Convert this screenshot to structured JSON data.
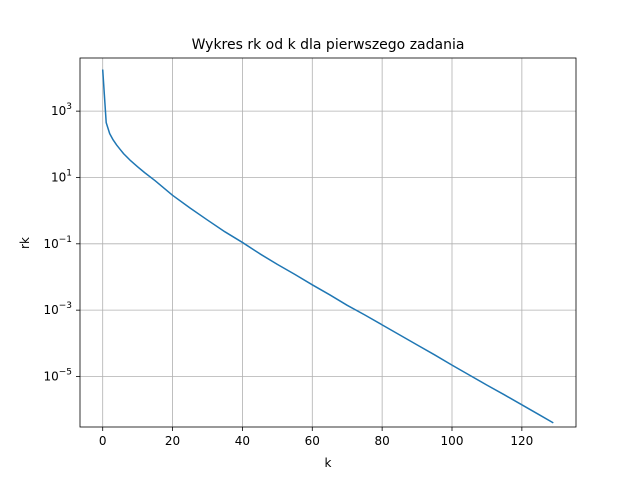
{
  "chart_data": {
    "type": "line",
    "title": "Wykres rk od k dla pierwszego zadania",
    "xlabel": "k",
    "ylabel": "rk",
    "yscale": "log",
    "grid": true,
    "xlim": [
      -6.5,
      135.5
    ],
    "ylim": [
      3e-07,
      40000.0
    ],
    "xticks": [
      0,
      20,
      40,
      60,
      80,
      100,
      120
    ],
    "xtick_labels": [
      "0",
      "20",
      "40",
      "60",
      "80",
      "100",
      "120"
    ],
    "yticks": [
      1e-05,
      0.001,
      0.1,
      10.0,
      1000.0
    ],
    "ytick_labels": [
      {
        "base": "10",
        "exp": "−5"
      },
      {
        "base": "10",
        "exp": "−3"
      },
      {
        "base": "10",
        "exp": "−1"
      },
      {
        "base": "10",
        "exp": "1"
      },
      {
        "base": "10",
        "exp": "3"
      }
    ],
    "series": [
      {
        "color": "#1f77b4",
        "x": [
          0,
          1,
          2,
          3,
          4,
          5,
          6,
          8,
          10,
          12,
          15,
          20,
          25,
          30,
          35,
          40,
          45,
          50,
          55,
          60,
          65,
          70,
          75,
          80,
          85,
          90,
          95,
          100,
          105,
          110,
          115,
          120,
          125,
          129
        ],
        "y": [
          18000,
          450,
          210,
          135,
          95,
          70,
          52,
          32,
          21,
          14,
          8,
          2.9,
          1.2,
          0.52,
          0.23,
          0.11,
          0.05,
          0.024,
          0.012,
          0.0058,
          0.0029,
          0.0014,
          0.00072,
          0.00036,
          0.00018,
          9e-05,
          4.5e-05,
          2.2e-05,
          1.1e-05,
          5.5e-06,
          2.8e-06,
          1.4e-06,
          7e-07,
          4e-07
        ]
      }
    ]
  }
}
